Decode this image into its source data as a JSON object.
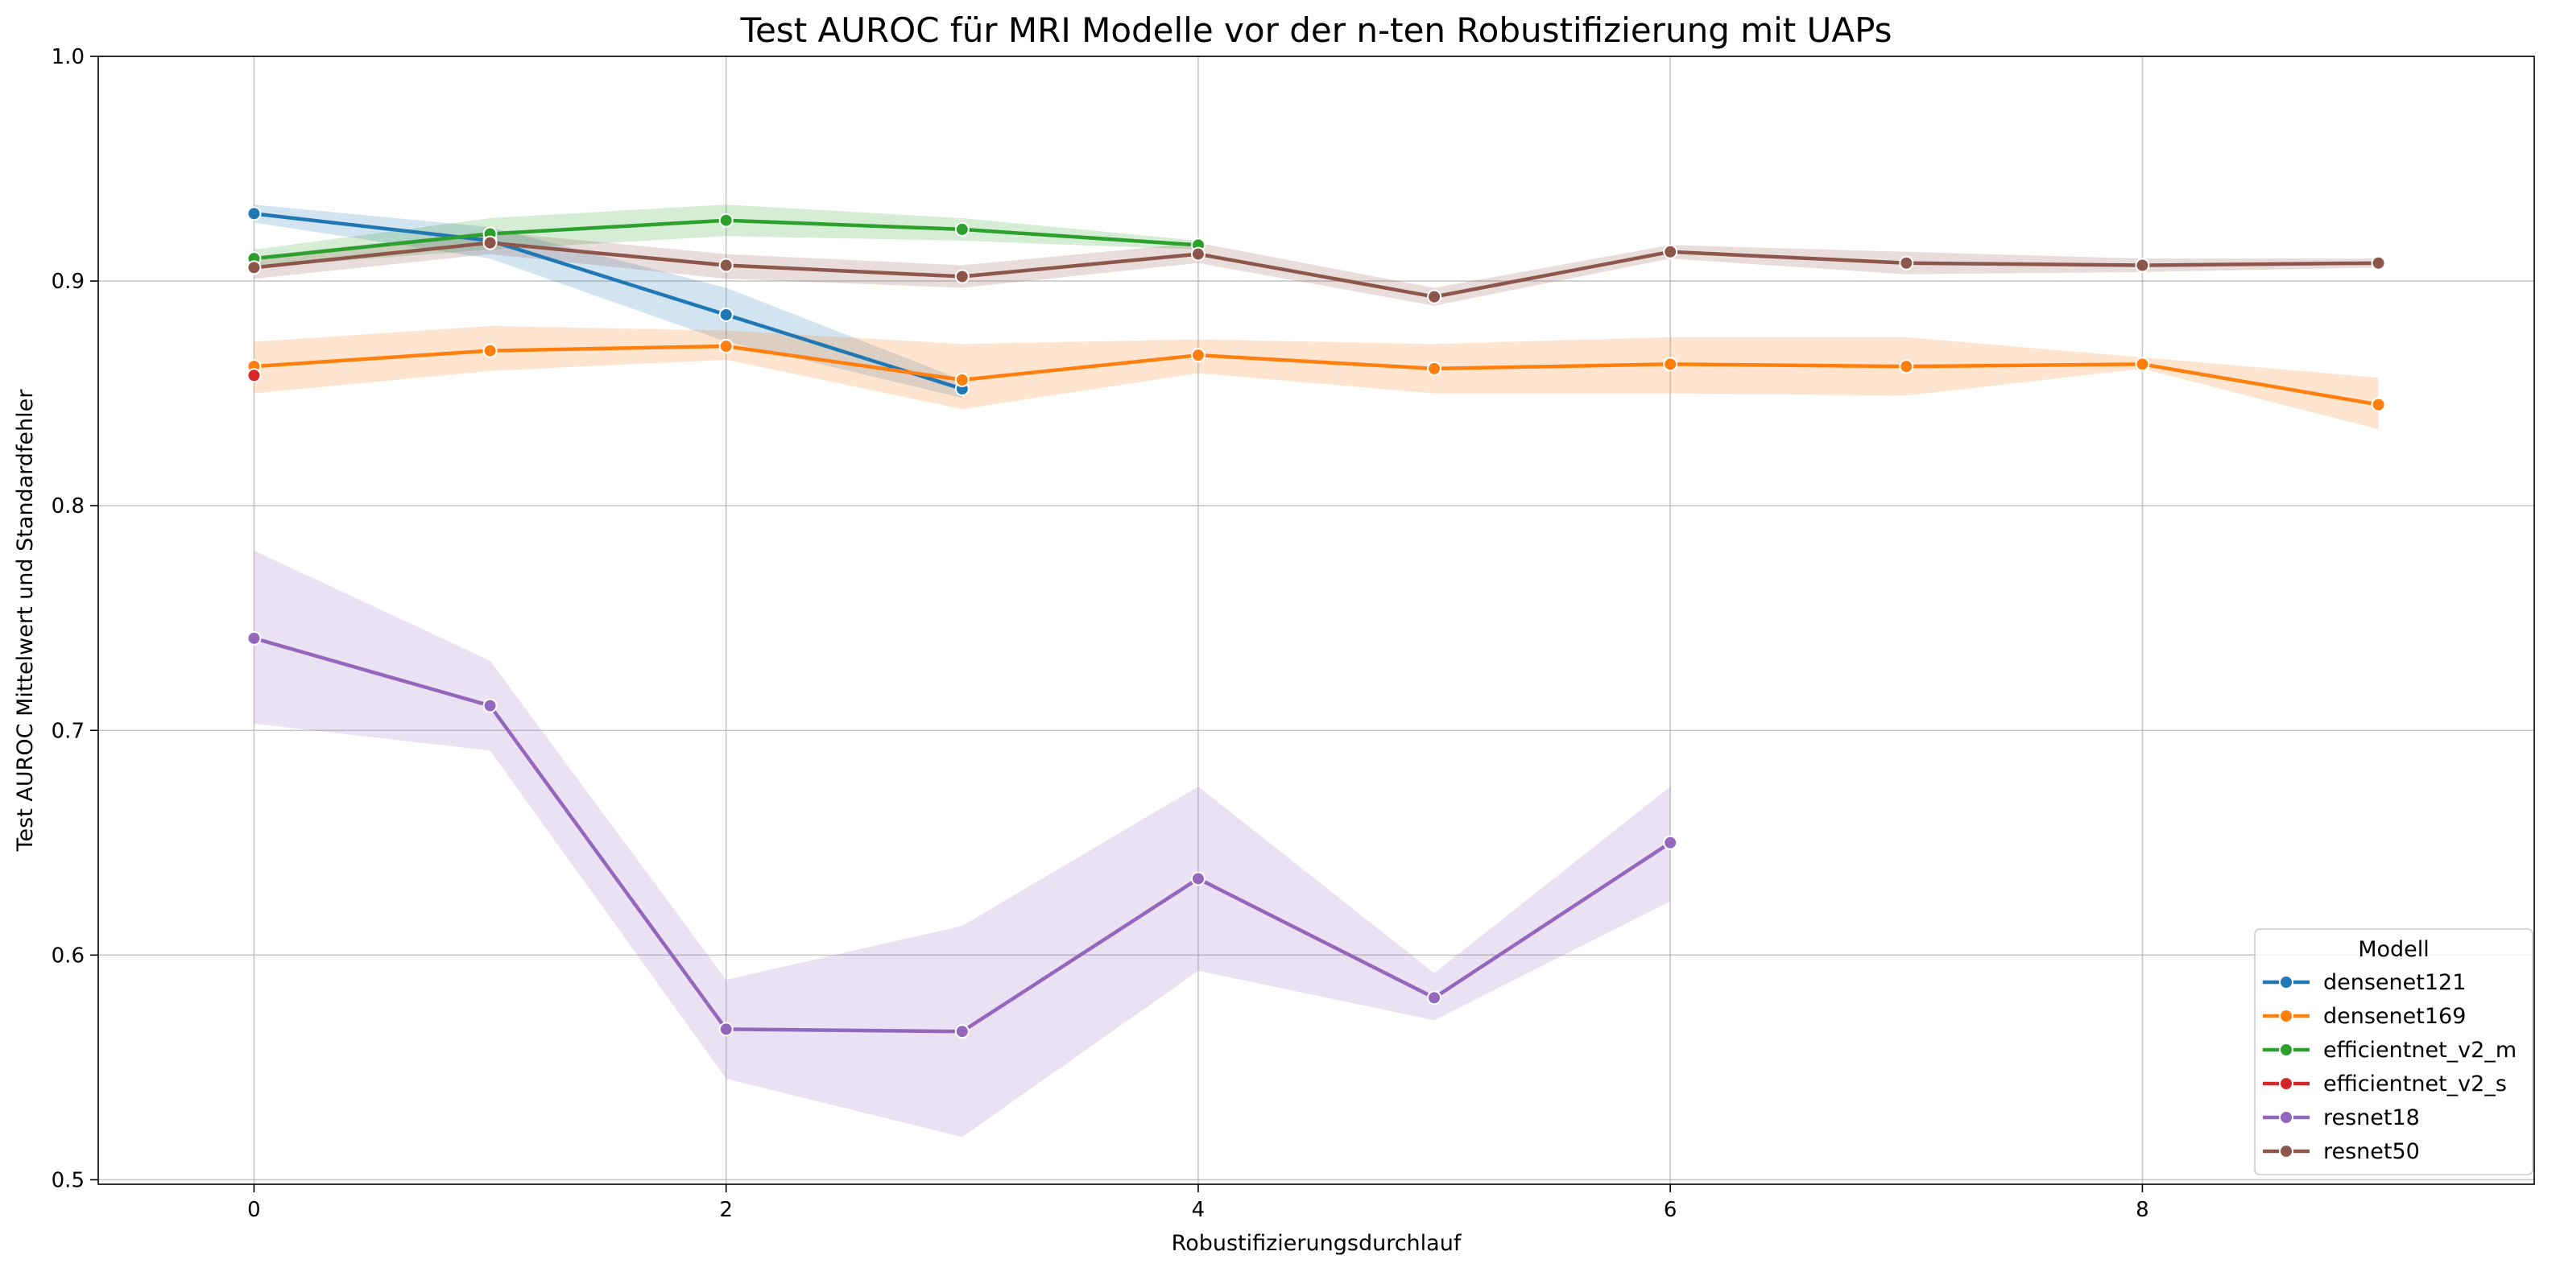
{
  "chart_data": {
    "type": "line",
    "title": "Test AUROC für MRI Modelle vor der n-ten Robustifizierung mit UAPs",
    "xlabel": "Robustifizierungsdurchlauf",
    "ylabel": "Test AUROC Mittelwert und Standardfehler",
    "xlim": [
      -0.66,
      9.66
    ],
    "ylim": [
      0.498,
      1.0
    ],
    "xticks": [
      0,
      2,
      4,
      6,
      8
    ],
    "xtick_labels": [
      "0",
      "2",
      "4",
      "6",
      "8"
    ],
    "yticks": [
      0.5,
      0.6,
      0.7,
      0.8,
      0.9,
      1.0
    ],
    "ytick_labels": [
      "0.5",
      "0.6",
      "0.7",
      "0.8",
      "0.9",
      "1.0"
    ],
    "grid": true,
    "legend": {
      "title": "Modell",
      "placement": "lower-right"
    },
    "series": [
      {
        "name": "densenet121",
        "color": "#1f77b4",
        "x": [
          0,
          1,
          2,
          3
        ],
        "y": [
          0.93,
          0.918,
          0.885,
          0.852
        ],
        "lower": [
          0.926,
          0.91,
          0.873,
          0.848
        ],
        "upper": [
          0.934,
          0.924,
          0.897,
          0.856
        ]
      },
      {
        "name": "densenet169",
        "color": "#ff7f0e",
        "x": [
          0,
          1,
          2,
          3,
          4,
          5,
          6,
          7,
          8,
          9
        ],
        "y": [
          0.862,
          0.869,
          0.871,
          0.856,
          0.867,
          0.861,
          0.863,
          0.862,
          0.863,
          0.845
        ],
        "lower": [
          0.85,
          0.86,
          0.865,
          0.843,
          0.859,
          0.85,
          0.85,
          0.849,
          0.861,
          0.834
        ],
        "upper": [
          0.873,
          0.88,
          0.878,
          0.872,
          0.874,
          0.872,
          0.875,
          0.875,
          0.866,
          0.857
        ]
      },
      {
        "name": "efficientnet_v2_m",
        "color": "#2ca02c",
        "x": [
          0,
          1,
          2,
          3,
          4
        ],
        "y": [
          0.91,
          0.921,
          0.927,
          0.923,
          0.916
        ],
        "lower": [
          0.906,
          0.914,
          0.92,
          0.918,
          0.914
        ],
        "upper": [
          0.914,
          0.928,
          0.934,
          0.928,
          0.918
        ]
      },
      {
        "name": "efficientnet_v2_s",
        "color": "#d62728",
        "x": [
          0
        ],
        "y": [
          0.858
        ],
        "lower": [
          0.858
        ],
        "upper": [
          0.858
        ]
      },
      {
        "name": "resnet18",
        "color": "#9467bd",
        "x": [
          0,
          1,
          2,
          3,
          4,
          5,
          6
        ],
        "y": [
          0.741,
          0.711,
          0.567,
          0.566,
          0.634,
          0.581,
          0.65
        ],
        "lower": [
          0.703,
          0.691,
          0.545,
          0.519,
          0.593,
          0.571,
          0.624
        ],
        "upper": [
          0.78,
          0.731,
          0.589,
          0.613,
          0.675,
          0.592,
          0.675
        ]
      },
      {
        "name": "resnet50",
        "color": "#8c564b",
        "x": [
          0,
          1,
          2,
          3,
          4,
          5,
          6,
          7,
          8,
          9
        ],
        "y": [
          0.906,
          0.917,
          0.907,
          0.902,
          0.912,
          0.893,
          0.913,
          0.908,
          0.907,
          0.908
        ],
        "lower": [
          0.901,
          0.912,
          0.901,
          0.897,
          0.908,
          0.889,
          0.91,
          0.903,
          0.904,
          0.906
        ],
        "upper": [
          0.911,
          0.922,
          0.912,
          0.907,
          0.917,
          0.897,
          0.916,
          0.913,
          0.91,
          0.91
        ]
      }
    ]
  }
}
